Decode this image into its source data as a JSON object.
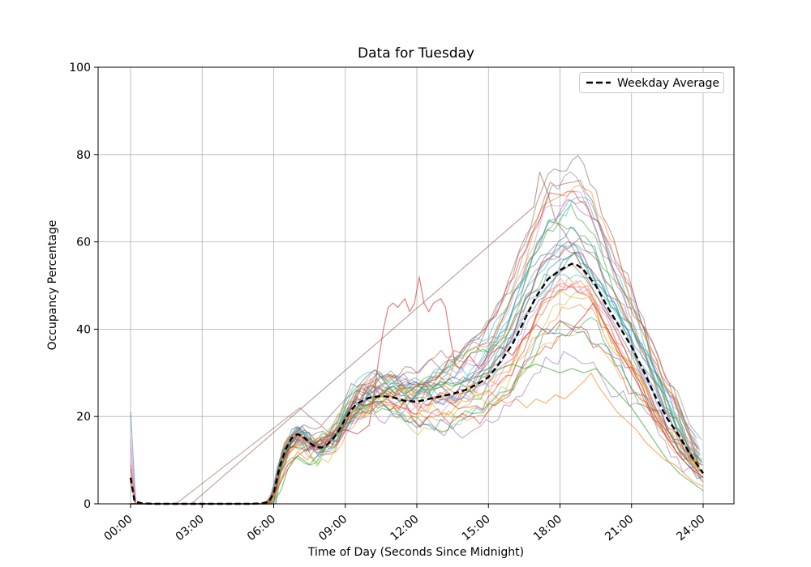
{
  "chart_data": {
    "type": "line",
    "title": "Data for Tuesday",
    "xlabel": "Time of Day (Seconds Since Midnight)",
    "ylabel": "Occupancy Percentage",
    "x_ticks": [
      {
        "label": "00:00",
        "hour": 0
      },
      {
        "label": "03:00",
        "hour": 3
      },
      {
        "label": "06:00",
        "hour": 6
      },
      {
        "label": "09:00",
        "hour": 9
      },
      {
        "label": "12:00",
        "hour": 12
      },
      {
        "label": "15:00",
        "hour": 15
      },
      {
        "label": "18:00",
        "hour": 18
      },
      {
        "label": "21:00",
        "hour": 21
      },
      {
        "label": "24:00",
        "hour": 24
      }
    ],
    "y_ticks": [
      0,
      20,
      40,
      60,
      80,
      100
    ],
    "ylim": [
      0,
      100
    ],
    "xlim_hours": [
      0,
      24
    ],
    "grid": true,
    "grid_color": "#b0b0b0",
    "background_color": "#ffffff",
    "legend": {
      "label": "Weekday Average",
      "position": "upper right"
    },
    "average_series": {
      "name": "Weekday Average",
      "color": "#000000",
      "dash": [
        7,
        4
      ],
      "width": 2.4,
      "x_hours": [
        0,
        0.17,
        0.5,
        1,
        2,
        3,
        4,
        5,
        5.5,
        5.8,
        6,
        6.25,
        6.5,
        6.75,
        7,
        7.25,
        7.5,
        7.75,
        8,
        8.25,
        8.5,
        8.75,
        9,
        9.25,
        9.5,
        10,
        10.5,
        11,
        11.5,
        12,
        12.5,
        13,
        13.5,
        14,
        14.5,
        15,
        15.5,
        16,
        16.5,
        17,
        17.5,
        18,
        18.25,
        18.5,
        18.75,
        19,
        19.5,
        20,
        20.5,
        21,
        21.5,
        22,
        22.5,
        23,
        23.5,
        24
      ],
      "values": [
        6,
        0.5,
        0.1,
        0,
        0,
        0,
        0,
        0,
        0.1,
        0.5,
        2.5,
        8.5,
        12.5,
        15,
        16,
        15.3,
        14,
        13,
        12.9,
        13.6,
        15,
        17,
        19.5,
        21.5,
        23,
        24.3,
        24.7,
        24.4,
        23.6,
        23.4,
        24,
        24.6,
        25.2,
        26,
        27.3,
        29,
        32.5,
        36.5,
        42,
        47.5,
        51.5,
        53.5,
        54.3,
        55,
        54.6,
        53.5,
        50,
        45,
        40.5,
        36,
        30.5,
        24.5,
        19.5,
        15.5,
        11,
        7
      ]
    },
    "special_series": [
      {
        "name": "red-midday-bump",
        "color": "#d62728",
        "alpha": 0.6,
        "points": [
          [
            0,
            5
          ],
          [
            0.2,
            0
          ],
          [
            5.7,
            0
          ],
          [
            6.2,
            4
          ],
          [
            6.6,
            9
          ],
          [
            7,
            11
          ],
          [
            7.5,
            13
          ],
          [
            8,
            15
          ],
          [
            8.5,
            16
          ],
          [
            9,
            17
          ],
          [
            9.5,
            16
          ],
          [
            10,
            18
          ],
          [
            10.2,
            25
          ],
          [
            10.4,
            33
          ],
          [
            10.6,
            40
          ],
          [
            10.8,
            45
          ],
          [
            11,
            46
          ],
          [
            11.2,
            45
          ],
          [
            11.5,
            47
          ],
          [
            11.7,
            44
          ],
          [
            11.9,
            46
          ],
          [
            12.1,
            52
          ],
          [
            12.3,
            46
          ],
          [
            12.5,
            44
          ],
          [
            12.7,
            46
          ],
          [
            13,
            47
          ],
          [
            13.2,
            45
          ],
          [
            13.4,
            38
          ],
          [
            13.6,
            32
          ],
          [
            13.8,
            31
          ],
          [
            14.2,
            34
          ],
          [
            14.6,
            31
          ],
          [
            15,
            34
          ],
          [
            15.5,
            36
          ],
          [
            16,
            34
          ],
          [
            16.5,
            38
          ],
          [
            17,
            41
          ],
          [
            17.5,
            39
          ],
          [
            18,
            42
          ],
          [
            18.5,
            40
          ],
          [
            19,
            43
          ],
          [
            19.4,
            46
          ],
          [
            19.8,
            42
          ],
          [
            20.2,
            38
          ],
          [
            20.6,
            34
          ],
          [
            21,
            30
          ],
          [
            21.5,
            25
          ],
          [
            22,
            19
          ],
          [
            22.5,
            15
          ],
          [
            23,
            11
          ],
          [
            23.5,
            8
          ],
          [
            24,
            6
          ]
        ]
      },
      {
        "name": "orange-low-evening",
        "color": "#ff7f0e",
        "alpha": 0.6,
        "points": [
          [
            5.85,
            0
          ],
          [
            6.3,
            5
          ],
          [
            6.7,
            9
          ],
          [
            7,
            12
          ],
          [
            7.4,
            10
          ],
          [
            7.8,
            13
          ],
          [
            8.2,
            15
          ],
          [
            8.6,
            17
          ],
          [
            9,
            19
          ],
          [
            9.4,
            22
          ],
          [
            9.8,
            20
          ],
          [
            10.2,
            24
          ],
          [
            10.6,
            26
          ],
          [
            11,
            24
          ],
          [
            11.4,
            27
          ],
          [
            11.8,
            25
          ],
          [
            12.2,
            28
          ],
          [
            12.6,
            26
          ],
          [
            13,
            28
          ],
          [
            13.4,
            26
          ],
          [
            13.8,
            25
          ],
          [
            14.2,
            27
          ],
          [
            14.6,
            25
          ],
          [
            15,
            26
          ],
          [
            15.4,
            24
          ],
          [
            15.8,
            23
          ],
          [
            16.2,
            24
          ],
          [
            16.6,
            22
          ],
          [
            17,
            24
          ],
          [
            17.4,
            23
          ],
          [
            17.8,
            25
          ],
          [
            18.2,
            24
          ],
          [
            18.6,
            26
          ],
          [
            19,
            28
          ],
          [
            19.3,
            30
          ],
          [
            19.6,
            27
          ],
          [
            20,
            24
          ],
          [
            20.4,
            21
          ],
          [
            20.8,
            19
          ],
          [
            21.2,
            17
          ],
          [
            21.6,
            14
          ],
          [
            22,
            12
          ],
          [
            22.4,
            10
          ],
          [
            22.8,
            9
          ],
          [
            23.2,
            7
          ],
          [
            23.6,
            5
          ],
          [
            24,
            4
          ]
        ]
      },
      {
        "name": "green-flat-evening",
        "color": "#2ca02c",
        "alpha": 0.6,
        "points": [
          [
            5.9,
            0
          ],
          [
            6.3,
            3
          ],
          [
            6.6,
            8
          ],
          [
            7,
            11
          ],
          [
            7.5,
            9
          ],
          [
            8,
            12
          ],
          [
            8.5,
            15
          ],
          [
            9,
            18
          ],
          [
            9.5,
            21
          ],
          [
            10,
            23
          ],
          [
            10.5,
            25
          ],
          [
            11,
            27
          ],
          [
            11.5,
            25
          ],
          [
            12,
            27
          ],
          [
            12.5,
            26
          ],
          [
            13,
            28
          ],
          [
            13.5,
            27
          ],
          [
            14,
            28
          ],
          [
            14.5,
            29
          ],
          [
            15,
            30
          ],
          [
            15.5,
            31
          ],
          [
            16,
            32
          ],
          [
            16.5,
            31
          ],
          [
            17,
            32
          ],
          [
            17.5,
            31
          ],
          [
            18,
            30
          ],
          [
            18.5,
            31
          ],
          [
            19,
            30
          ],
          [
            19.5,
            31
          ],
          [
            20,
            28
          ],
          [
            20.5,
            25
          ],
          [
            21,
            22
          ],
          [
            21.5,
            18
          ],
          [
            22,
            14
          ],
          [
            22.5,
            10
          ],
          [
            23,
            7
          ],
          [
            23.5,
            5
          ],
          [
            24,
            3
          ]
        ]
      },
      {
        "name": "gap-line-long",
        "color": "#8c564b",
        "alpha": 0.55,
        "points": [
          [
            2.55,
            0
          ],
          [
            16.9,
            68
          ],
          [
            17.15,
            76
          ],
          [
            17.5,
            71
          ],
          [
            17.8,
            65
          ],
          [
            18.2,
            62
          ],
          [
            18.6,
            58
          ],
          [
            19,
            53
          ],
          [
            19.5,
            48
          ],
          [
            20,
            43
          ],
          [
            20.5,
            38
          ],
          [
            21,
            32
          ],
          [
            21.5,
            26
          ],
          [
            22,
            20
          ],
          [
            22.5,
            15
          ],
          [
            23,
            11
          ],
          [
            23.5,
            8
          ],
          [
            24,
            5
          ]
        ]
      },
      {
        "name": "gap-line-short",
        "color": "#8c564b",
        "alpha": 0.5,
        "points": [
          [
            1.9,
            0
          ],
          [
            7.1,
            22
          ],
          [
            7.5,
            20
          ],
          [
            8,
            18
          ],
          [
            8.5,
            21
          ],
          [
            9,
            24
          ],
          [
            9.5,
            26
          ],
          [
            10,
            25
          ],
          [
            10.5,
            27
          ],
          [
            11,
            26
          ],
          [
            11.5,
            28
          ],
          [
            12,
            27
          ],
          [
            12.5,
            28
          ],
          [
            13,
            27
          ],
          [
            13.5,
            29
          ],
          [
            14,
            28
          ],
          [
            14.5,
            30
          ],
          [
            15,
            31
          ],
          [
            15.5,
            34
          ],
          [
            16,
            38
          ],
          [
            16.5,
            43
          ],
          [
            17,
            47
          ],
          [
            17.5,
            50
          ],
          [
            18,
            53
          ],
          [
            18.5,
            55
          ],
          [
            19,
            52
          ],
          [
            19.5,
            48
          ],
          [
            20,
            44
          ],
          [
            20.5,
            39
          ],
          [
            21,
            34
          ],
          [
            21.5,
            28
          ],
          [
            22,
            22
          ],
          [
            22.5,
            17
          ],
          [
            23,
            12
          ],
          [
            23.5,
            9
          ],
          [
            24,
            6
          ]
        ]
      }
    ],
    "background_lines": {
      "alpha": 0.5,
      "width": 1.2,
      "palette": [
        "#1f77b4",
        "#ff7f0e",
        "#2ca02c",
        "#d62728",
        "#9467bd",
        "#8c564b",
        "#e377c2",
        "#7f7f7f",
        "#bcbd22",
        "#17becf"
      ],
      "lines": [
        {
          "ci": 0,
          "seed": 11,
          "amp": 1.05,
          "spike": 21
        },
        {
          "ci": 1,
          "seed": 12,
          "amp": 0.95,
          "spike": 0
        },
        {
          "ci": 2,
          "seed": 13,
          "amp": 0.8,
          "spike": 0
        },
        {
          "ci": 3,
          "seed": 14,
          "amp": 1.1,
          "spike": 9
        },
        {
          "ci": 4,
          "seed": 15,
          "amp": 1.25,
          "spike": 0
        },
        {
          "ci": 5,
          "seed": 16,
          "amp": 1.38,
          "spike": 0
        },
        {
          "ci": 6,
          "seed": 17,
          "amp": 1.3,
          "spike": 13
        },
        {
          "ci": 7,
          "seed": 18,
          "amp": 1.35,
          "spike": 0
        },
        {
          "ci": 8,
          "seed": 19,
          "amp": 0.9,
          "spike": 0
        },
        {
          "ci": 9,
          "seed": 20,
          "amp": 1.0,
          "spike": 0
        },
        {
          "ci": 0,
          "seed": 21,
          "amp": 1.15,
          "spike": 0
        },
        {
          "ci": 1,
          "seed": 22,
          "amp": 0.85,
          "spike": 0
        },
        {
          "ci": 2,
          "seed": 23,
          "amp": 1.2,
          "spike": 8
        },
        {
          "ci": 3,
          "seed": 24,
          "amp": 0.7,
          "spike": 0
        },
        {
          "ci": 4,
          "seed": 25,
          "amp": 1.05,
          "spike": 0
        },
        {
          "ci": 5,
          "seed": 26,
          "amp": 1.42,
          "spike": 0
        },
        {
          "ci": 6,
          "seed": 27,
          "amp": 0.95,
          "spike": 15
        },
        {
          "ci": 7,
          "seed": 28,
          "amp": 1.1,
          "spike": 0
        },
        {
          "ci": 8,
          "seed": 29,
          "amp": 0.75,
          "spike": 0
        },
        {
          "ci": 9,
          "seed": 30,
          "amp": 1.28,
          "spike": 0
        },
        {
          "ci": 0,
          "seed": 31,
          "amp": 1.0,
          "spike": 0
        },
        {
          "ci": 1,
          "seed": 32,
          "amp": 0.9,
          "spike": 6
        },
        {
          "ci": 2,
          "seed": 33,
          "amp": 1.18,
          "spike": 0
        },
        {
          "ci": 3,
          "seed": 34,
          "amp": 1.32,
          "spike": 0
        },
        {
          "ci": 4,
          "seed": 35,
          "amp": 0.65,
          "spike": 0
        },
        {
          "ci": 5,
          "seed": 36,
          "amp": 1.08,
          "spike": 0
        },
        {
          "ci": 6,
          "seed": 37,
          "amp": 0.92,
          "spike": 10
        },
        {
          "ci": 7,
          "seed": 38,
          "amp": 1.22,
          "spike": 0
        },
        {
          "ci": 8,
          "seed": 39,
          "amp": 0.85,
          "spike": 0
        },
        {
          "ci": 9,
          "seed": 40,
          "amp": 1.12,
          "spike": 0
        },
        {
          "ci": 0,
          "seed": 41,
          "amp": 0.78,
          "spike": 0
        },
        {
          "ci": 1,
          "seed": 42,
          "amp": 1.35,
          "spike": 0
        },
        {
          "ci": 2,
          "seed": 43,
          "amp": 1.02,
          "spike": 0
        },
        {
          "ci": 3,
          "seed": 44,
          "amp": 0.88,
          "spike": 0
        }
      ]
    },
    "synth": {
      "start_hour_base": 5.75,
      "start_jitter": 0.7,
      "noise_decay": 0.72,
      "noise_scale": 4.2,
      "step": 0.25,
      "ramp_start": 6.5,
      "ramp_len": 8.5
    }
  }
}
